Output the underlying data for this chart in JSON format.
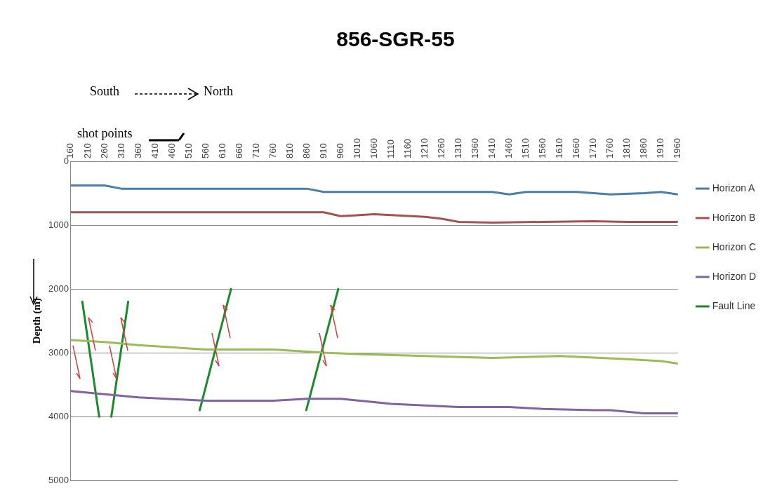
{
  "chart_data": {
    "type": "line",
    "title": "856-SGR-55",
    "ylabel": "Depth (m)",
    "annotations": [
      "South",
      "North",
      "shot points"
    ],
    "xlim": [
      160,
      1960
    ],
    "xticks": [
      160,
      210,
      260,
      310,
      360,
      410,
      460,
      510,
      560,
      610,
      660,
      710,
      760,
      810,
      860,
      910,
      960,
      1010,
      1060,
      1110,
      1160,
      1210,
      1260,
      1310,
      1360,
      1410,
      1460,
      1510,
      1560,
      1610,
      1660,
      1710,
      1760,
      1810,
      1860,
      1910,
      1960
    ],
    "ylim": [
      5000,
      0
    ],
    "yticks": [
      0,
      1000,
      2000,
      3000,
      4000,
      5000
    ],
    "grid": "y",
    "legend": "right",
    "marker": "none",
    "line_style": "solid",
    "series": [
      {
        "name": "Horizon A",
        "color": "#4a7eaa",
        "x": [
          160,
          260,
          310,
          460,
          660,
          860,
          910,
          1060,
          1260,
          1410,
          1460,
          1510,
          1660,
          1760,
          1860,
          1910,
          1960
        ],
        "values": [
          380,
          380,
          430,
          430,
          430,
          430,
          480,
          480,
          480,
          480,
          520,
          480,
          480,
          520,
          500,
          480,
          520
        ]
      },
      {
        "name": "Horizon B",
        "color": "#a4524f",
        "x": [
          160,
          460,
          760,
          910,
          960,
          1060,
          1210,
          1260,
          1310,
          1410,
          1560,
          1710,
          1810,
          1960
        ],
        "values": [
          800,
          800,
          800,
          800,
          860,
          830,
          870,
          900,
          950,
          960,
          950,
          940,
          950,
          950
        ]
      },
      {
        "name": "Horizon C",
        "color": "#9bbb59",
        "x": [
          160,
          260,
          360,
          560,
          760,
          910,
          1010,
          1210,
          1410,
          1610,
          1810,
          1910,
          1960
        ],
        "values": [
          2800,
          2830,
          2880,
          2950,
          2950,
          3000,
          3020,
          3050,
          3080,
          3050,
          3100,
          3130,
          3170
        ]
      },
      {
        "name": "Horizon D",
        "color": "#8064a2",
        "x": [
          160,
          260,
          360,
          560,
          760,
          860,
          960,
          1110,
          1310,
          1460,
          1560,
          1710,
          1760,
          1860,
          1960
        ],
        "values": [
          3600,
          3650,
          3700,
          3750,
          3750,
          3720,
          3720,
          3800,
          3850,
          3850,
          3880,
          3900,
          3900,
          3950,
          3950
        ]
      },
      {
        "name": "Fault Line",
        "color": "#1a8a2a",
        "x": [
          194,
          244,
          null,
          330,
          280,
          null,
          635,
          542,
          null,
          953,
          858
        ],
        "values": [
          2200,
          4000,
          null,
          2200,
          4000,
          null,
          2000,
          3900,
          null,
          2000,
          3900
        ]
      }
    ]
  }
}
